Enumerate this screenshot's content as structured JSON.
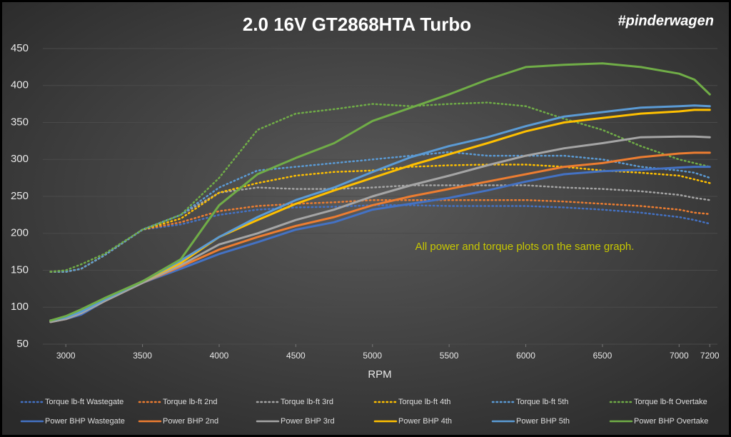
{
  "chart_data": {
    "type": "line",
    "title": "2.0 16V GT2868HTA Turbo",
    "watermark": "#pinderwagen",
    "annotation": "All power and torque plots on the same graph.",
    "x_label": "RPM",
    "x": [
      2900,
      3000,
      3100,
      3250,
      3500,
      3750,
      4000,
      4250,
      4500,
      4750,
      5000,
      5250,
      5500,
      5750,
      6000,
      6250,
      6500,
      6750,
      7000,
      7100,
      7200
    ],
    "xlim": [
      2850,
      7250
    ],
    "xticks": [
      3000,
      3500,
      4000,
      4500,
      5000,
      5500,
      6000,
      6500,
      7000,
      7200
    ],
    "ylim": [
      50,
      450
    ],
    "yticks": [
      50,
      100,
      150,
      200,
      250,
      300,
      350,
      400,
      450
    ],
    "grid": true,
    "series": [
      {
        "name": "Torque lb-ft Wastegate",
        "color": "#4472c4",
        "style": "dotted",
        "values": [
          148,
          148,
          152,
          170,
          205,
          212,
          225,
          232,
          235,
          236,
          238,
          238,
          237,
          237,
          237,
          235,
          232,
          228,
          222,
          218,
          213
        ]
      },
      {
        "name": "Torque lb-ft 2nd",
        "color": "#ed7d31",
        "style": "dotted",
        "values": [
          148,
          148,
          152,
          170,
          205,
          215,
          230,
          237,
          240,
          242,
          245,
          245,
          245,
          245,
          245,
          243,
          240,
          237,
          232,
          228,
          226
        ]
      },
      {
        "name": "Torque lb-ft 3rd",
        "color": "#a5a5a5",
        "style": "dotted",
        "values": [
          148,
          148,
          152,
          170,
          205,
          225,
          255,
          262,
          260,
          260,
          262,
          265,
          265,
          265,
          265,
          262,
          260,
          257,
          252,
          248,
          245
        ]
      },
      {
        "name": "Torque lb-ft 4th",
        "color": "#ffc000",
        "style": "dotted",
        "values": [
          148,
          148,
          152,
          170,
          205,
          220,
          255,
          268,
          278,
          283,
          285,
          290,
          292,
          293,
          293,
          290,
          285,
          282,
          278,
          273,
          268
        ]
      },
      {
        "name": "Torque lb-ft 5th",
        "color": "#5b9bd5",
        "style": "dotted",
        "values": [
          148,
          148,
          152,
          170,
          205,
          225,
          262,
          285,
          290,
          295,
          300,
          305,
          310,
          305,
          305,
          305,
          300,
          290,
          285,
          282,
          275
        ]
      },
      {
        "name": "Torque lb-ft Overtake",
        "color": "#70ad47",
        "style": "dotted",
        "values": [
          148,
          150,
          158,
          172,
          205,
          225,
          275,
          340,
          362,
          368,
          375,
          372,
          375,
          377,
          372,
          355,
          340,
          318,
          300,
          295,
          290
        ]
      },
      {
        "name": "Power BHP Wastegate",
        "color": "#4472c4",
        "style": "solid",
        "values": [
          80,
          84,
          90,
          108,
          133,
          152,
          172,
          188,
          205,
          215,
          232,
          240,
          248,
          258,
          270,
          280,
          284,
          286,
          289,
          290,
          290
        ]
      },
      {
        "name": "Power BHP 2nd",
        "color": "#ed7d31",
        "style": "solid",
        "values": [
          80,
          84,
          92,
          108,
          133,
          155,
          178,
          195,
          210,
          222,
          238,
          250,
          260,
          270,
          280,
          290,
          295,
          303,
          308,
          309,
          309
        ]
      },
      {
        "name": "Power BHP 3rd",
        "color": "#a5a5a5",
        "style": "solid",
        "values": [
          80,
          84,
          92,
          108,
          133,
          157,
          185,
          200,
          218,
          232,
          250,
          265,
          278,
          292,
          305,
          315,
          322,
          330,
          331,
          331,
          330
        ]
      },
      {
        "name": "Power BHP 4th",
        "color": "#ffc000",
        "style": "solid",
        "values": [
          82,
          86,
          94,
          110,
          135,
          160,
          195,
          218,
          240,
          258,
          275,
          292,
          307,
          322,
          338,
          350,
          356,
          362,
          365,
          367,
          367
        ]
      },
      {
        "name": "Power BHP 5th",
        "color": "#5b9bd5",
        "style": "solid",
        "values": [
          82,
          86,
          94,
          110,
          135,
          163,
          195,
          222,
          245,
          262,
          283,
          303,
          318,
          330,
          345,
          358,
          364,
          370,
          372,
          373,
          372
        ]
      },
      {
        "name": "Power BHP Overtake",
        "color": "#70ad47",
        "style": "solid",
        "values": [
          82,
          88,
          97,
          112,
          135,
          165,
          238,
          280,
          302,
          322,
          352,
          370,
          388,
          408,
          425,
          428,
          430,
          425,
          416,
          408,
          388
        ]
      }
    ]
  }
}
